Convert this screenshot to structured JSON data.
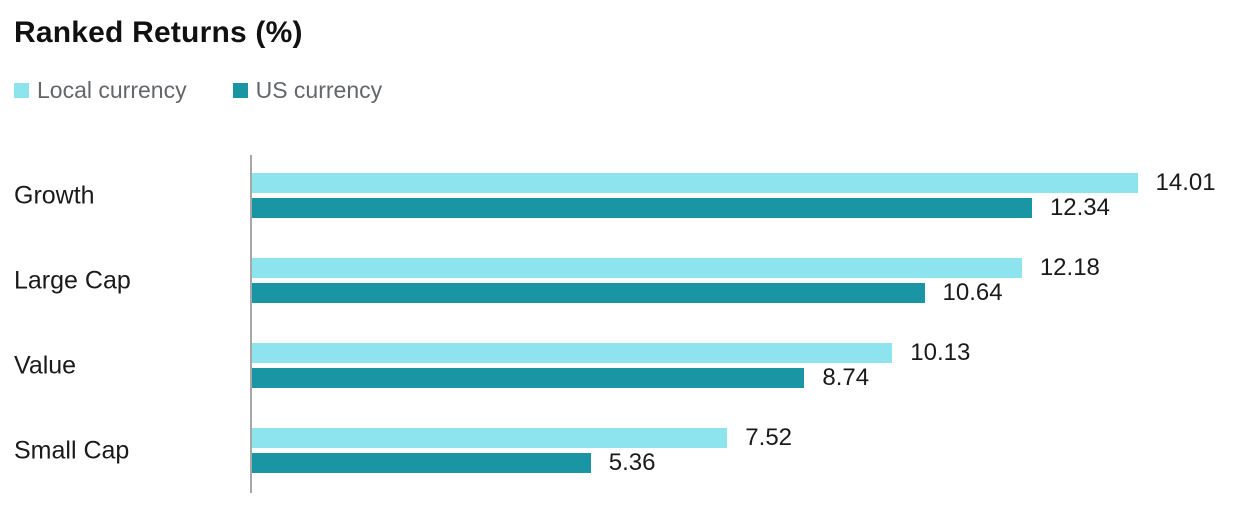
{
  "chart": {
    "title": "Ranked Returns (%)"
  },
  "legend": {
    "items": [
      {
        "label": "Local currency"
      },
      {
        "label": "US currency"
      }
    ]
  },
  "colors": {
    "local_currency": "#8DE4EE",
    "us_currency": "#1A95A3",
    "axis_line": "#A7A7A7",
    "title_text": "#111111",
    "legend_text": "#63666A",
    "value_text": "#1A1A1A"
  },
  "chart_data": {
    "type": "bar",
    "orientation": "horizontal",
    "title": "Ranked Returns (%)",
    "categories": [
      "Growth",
      "Large Cap",
      "Value",
      "Small Cap"
    ],
    "series": [
      {
        "name": "Local currency",
        "color": "#8DE4EE",
        "values": [
          14.01,
          12.18,
          10.13,
          7.52
        ]
      },
      {
        "name": "US currency",
        "color": "#1A95A3",
        "values": [
          12.34,
          10.64,
          8.74,
          5.36
        ]
      }
    ],
    "xlim": [
      0,
      15.6
    ],
    "xlabel": "",
    "ylabel": "",
    "grid": false,
    "value_labels": true,
    "value_label_decimals": 2,
    "legend_position": "top-left"
  }
}
